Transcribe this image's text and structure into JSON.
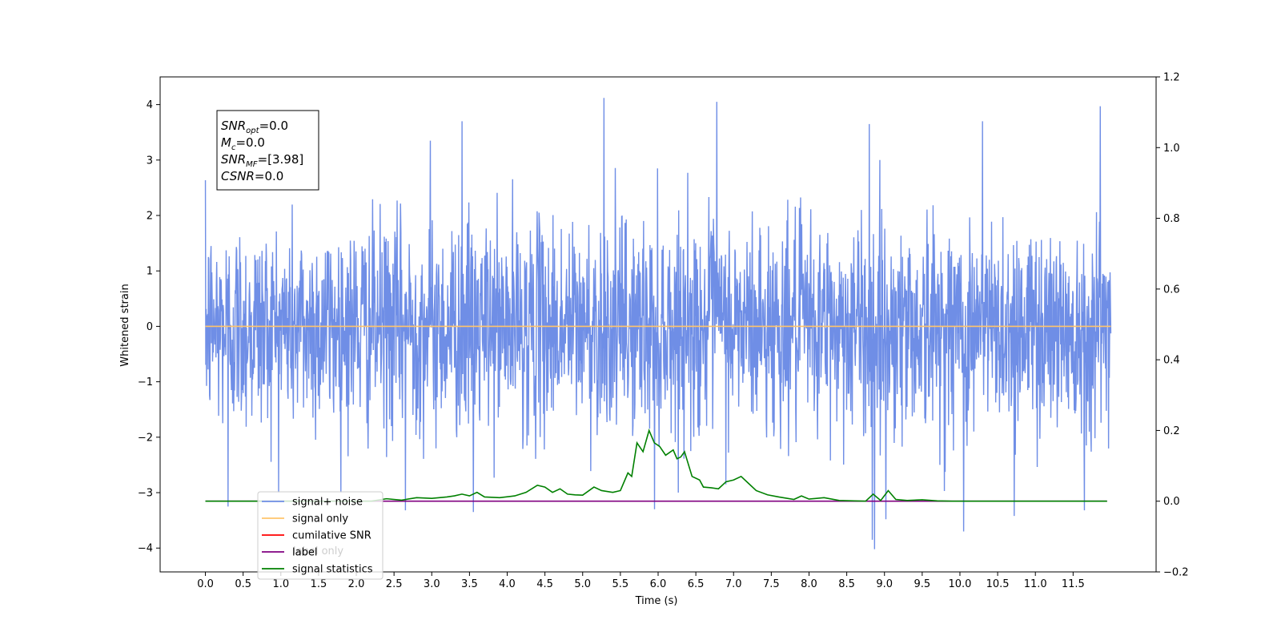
{
  "chart_data": {
    "type": "line",
    "xlabel": "Time (s)",
    "ylabel": "Whitened strain",
    "xlim": [
      -0.6,
      12.6
    ],
    "ylim": [
      -4.43,
      4.5
    ],
    "y2lim": [
      -0.2,
      1.2
    ],
    "grid": false,
    "x_ticks": [
      "0.0",
      "0.5",
      "1.0",
      "1.5",
      "2.0",
      "2.5",
      "3.0",
      "3.5",
      "4.0",
      "4.5",
      "5.0",
      "5.5",
      "6.0",
      "6.5",
      "7.0",
      "7.5",
      "8.0",
      "8.5",
      "9.0",
      "9.5",
      "10.0",
      "10.5",
      "11.0",
      "11.5"
    ],
    "y_ticks": [
      "−4",
      "−3",
      "−2",
      "−1",
      "0",
      "1",
      "2",
      "3",
      "4"
    ],
    "y2_ticks": [
      "−0.2",
      "0.0",
      "0.2",
      "0.4",
      "0.6",
      "0.8",
      "1.0",
      "1.2"
    ],
    "annotation": {
      "lines": [
        {
          "var": "SNR",
          "sub": "opt",
          "value": "=0.0"
        },
        {
          "var": "M",
          "sub": "c",
          "value": "=0.0"
        },
        {
          "var": "SNR",
          "sub": "MF",
          "value": "=[3.98]"
        },
        {
          "var": "CSNR",
          "sub": "",
          "value": "=0.0"
        }
      ]
    },
    "legend": {
      "placement": "lower-left",
      "entries": [
        {
          "label": "signal+ noise",
          "color": "#6f8ee6"
        },
        {
          "label": "signal only",
          "color": "#ffc46b"
        },
        {
          "label": "cumilative SNR",
          "color": "#ff0000"
        },
        {
          "label": "label",
          "color": "#800080"
        },
        {
          "label": "signal statistics",
          "color": "#008000"
        }
      ],
      "hidden_labels": [
        "label only"
      ]
    },
    "series": [
      {
        "name": "signal+ noise",
        "axis": "left",
        "color": "#6f8ee6",
        "x_range": [
          0.0,
          12.0
        ],
        "amplitude_envelope": [
          -4.1,
          4.15
        ],
        "peaks": [
          {
            "x": 5.28,
            "y": 4.12
          },
          {
            "x": 6.78,
            "y": 4.05
          },
          {
            "x": 11.86,
            "y": 3.97
          },
          {
            "x": 3.4,
            "y": 3.7
          },
          {
            "x": 8.8,
            "y": 3.65
          },
          {
            "x": 10.3,
            "y": 3.7
          },
          {
            "x": 2.98,
            "y": 3.35
          },
          {
            "x": 8.84,
            "y": -3.85
          },
          {
            "x": 8.87,
            "y": -4.02
          },
          {
            "x": 10.05,
            "y": -3.7
          },
          {
            "x": 10.72,
            "y": -3.42
          },
          {
            "x": 11.65,
            "y": -3.32
          },
          {
            "x": 9.02,
            "y": -3.48
          },
          {
            "x": 5.95,
            "y": -3.3
          },
          {
            "x": 3.55,
            "y": -3.35
          },
          {
            "x": 2.65,
            "y": -3.32
          },
          {
            "x": 0.3,
            "y": -3.25
          }
        ]
      },
      {
        "name": "signal only",
        "axis": "left",
        "color": "#ffc46b",
        "x": [
          0.0,
          12.0
        ],
        "y": [
          0.0,
          0.0
        ]
      },
      {
        "name": "label",
        "axis": "right",
        "color": "#800080",
        "x": [
          0.0,
          11.95
        ],
        "y": [
          0.0,
          0.0
        ]
      },
      {
        "name": "signal statistics",
        "axis": "right",
        "color": "#008000",
        "x": [
          0.0,
          2.2,
          2.4,
          2.6,
          2.8,
          3.0,
          3.2,
          3.3,
          3.4,
          3.5,
          3.6,
          3.7,
          3.9,
          4.1,
          4.25,
          4.4,
          4.5,
          4.6,
          4.7,
          4.8,
          4.9,
          5.0,
          5.15,
          5.25,
          5.4,
          5.5,
          5.6,
          5.65,
          5.72,
          5.8,
          5.88,
          5.95,
          6.02,
          6.1,
          6.2,
          6.25,
          6.3,
          6.35,
          6.45,
          6.55,
          6.6,
          6.7,
          6.8,
          6.9,
          7.0,
          7.1,
          7.2,
          7.3,
          7.45,
          7.6,
          7.8,
          7.9,
          8.0,
          8.2,
          8.4,
          8.6,
          8.75,
          8.85,
          8.95,
          9.05,
          9.15,
          9.3,
          9.5,
          9.7,
          9.9,
          10.2,
          11.95
        ],
        "y": [
          0.0,
          0.0,
          0.007,
          0.003,
          0.01,
          0.008,
          0.012,
          0.015,
          0.02,
          0.015,
          0.025,
          0.012,
          0.01,
          0.015,
          0.025,
          0.045,
          0.04,
          0.025,
          0.035,
          0.02,
          0.018,
          0.017,
          0.04,
          0.03,
          0.025,
          0.03,
          0.08,
          0.07,
          0.165,
          0.14,
          0.2,
          0.165,
          0.155,
          0.13,
          0.145,
          0.12,
          0.125,
          0.14,
          0.07,
          0.06,
          0.04,
          0.038,
          0.035,
          0.055,
          0.06,
          0.07,
          0.05,
          0.03,
          0.018,
          0.012,
          0.005,
          0.015,
          0.006,
          0.01,
          0.002,
          0.001,
          0.0,
          0.02,
          0.002,
          0.03,
          0.005,
          0.002,
          0.004,
          0.001,
          0.0,
          0.0,
          0.0
        ]
      }
    ]
  }
}
